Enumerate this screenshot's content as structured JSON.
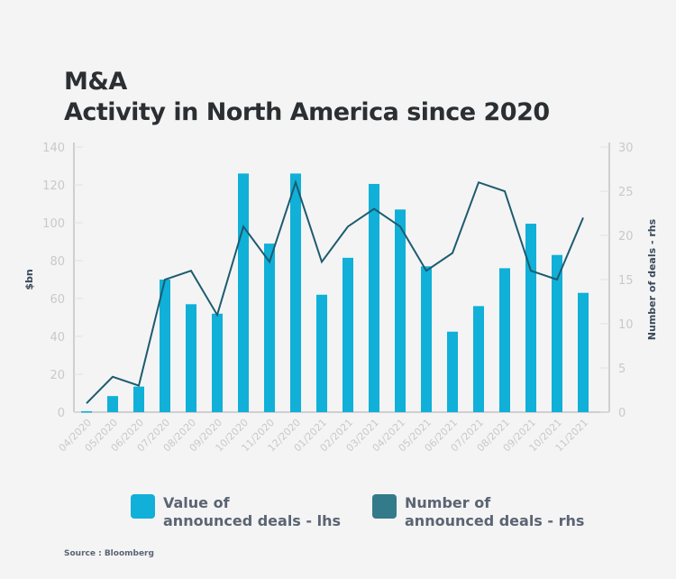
{
  "title_line1": "M&A",
  "title_line2": "Activity in North America since 2020",
  "legend": [
    {
      "label_line1": "Value of",
      "label_line2": "announced deals - lhs",
      "color": "#10b0d8"
    },
    {
      "label_line1": "Number of",
      "label_line2": "announced deals - rhs",
      "color": "#337a8b"
    }
  ],
  "source": "Source : Bloomberg",
  "chart_data": {
    "type": "bar",
    "title": "M&A Activity in North America since 2020",
    "categories": [
      "04/2020",
      "05/2020",
      "06/2020",
      "07/2020",
      "08/2020",
      "09/2020",
      "10/2020",
      "11/2020",
      "12/2020",
      "01/2021",
      "02/2021",
      "03/2021",
      "04/2021",
      "05/2021",
      "06/2021",
      "07/2021",
      "08/2021",
      "09/2021",
      "10/2021",
      "11/2021"
    ],
    "series": [
      {
        "name": "Value of announced deals - lhs",
        "type": "bar",
        "axis": "left",
        "color": "#10b0d8",
        "values": [
          0.5,
          8.5,
          13.5,
          70,
          57,
          52,
          126,
          89,
          126,
          62,
          81.5,
          120.5,
          107,
          77,
          42.5,
          56,
          76,
          99.5,
          83,
          63
        ]
      },
      {
        "name": "Number of announced deals - rhs",
        "type": "line",
        "axis": "right",
        "color": "#1d5b6e",
        "values": [
          1,
          4,
          3,
          15,
          16,
          11,
          21,
          17,
          26,
          17,
          21,
          23,
          21,
          16,
          18,
          26,
          25,
          16,
          15,
          22
        ]
      }
    ],
    "ylabel": "$bn",
    "ylabel_right": "Number of deals - rhs",
    "ylim": [
      0,
      140
    ],
    "yticks": [
      0,
      20,
      40,
      60,
      80,
      100,
      120,
      140
    ],
    "ylim_right": [
      0,
      30
    ],
    "yticks_right": [
      0,
      5,
      10,
      15,
      20,
      25,
      30
    ],
    "grid": false,
    "legend_position": "bottom"
  }
}
